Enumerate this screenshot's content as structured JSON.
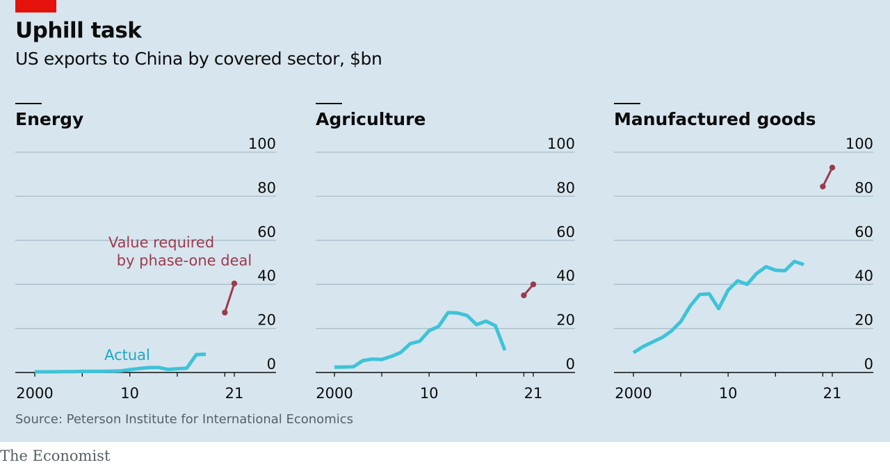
{
  "header": {
    "title": "Uphill task",
    "subtitle": "US exports to China by covered sector, $bn"
  },
  "footer": {
    "source": "Source: Peterson Institute for International Economics",
    "brand": "The Economist"
  },
  "colors": {
    "actual": "#3ec3d8",
    "required": "#9c3a4d",
    "brand_red": "#e3120b"
  },
  "chart_data": [
    {
      "type": "line",
      "title": "Energy",
      "xlim": [
        2000,
        2024
      ],
      "ylim": [
        0,
        100
      ],
      "yticks": [
        0,
        20,
        40,
        60,
        80,
        100
      ],
      "xticks": [
        2000,
        2010,
        2021
      ],
      "xtick_labels": [
        "2000",
        "10",
        "21"
      ],
      "annotations": {
        "required": [
          "Value required",
          "by phase-one deal"
        ],
        "actual": "Actual"
      },
      "series": [
        {
          "name": "Actual",
          "x": [
            2000,
            2001,
            2002,
            2003,
            2004,
            2005,
            2006,
            2007,
            2008,
            2009,
            2010,
            2011,
            2012,
            2013,
            2014,
            2015,
            2016,
            2017,
            2018
          ],
          "values": [
            0.3,
            0.3,
            0.3,
            0.4,
            0.4,
            0.5,
            0.5,
            0.5,
            0.6,
            0.7,
            1.3,
            1.8,
            2.2,
            2.3,
            1.4,
            1.7,
            2.0,
            8.1,
            8.3
          ]
        },
        {
          "name": "Value required by phase-one deal",
          "x": [
            2020,
            2021
          ],
          "values": [
            27.2,
            40.4
          ]
        }
      ]
    },
    {
      "type": "line",
      "title": "Agriculture",
      "xlim": [
        2000,
        2024
      ],
      "ylim": [
        0,
        100
      ],
      "yticks": [
        0,
        20,
        40,
        60,
        80,
        100
      ],
      "xticks": [
        2000,
        2010,
        2021
      ],
      "xtick_labels": [
        "2000",
        "10",
        "21"
      ],
      "series": [
        {
          "name": "Actual",
          "x": [
            2000,
            2001,
            2002,
            2003,
            2004,
            2005,
            2006,
            2007,
            2008,
            2009,
            2010,
            2011,
            2012,
            2013,
            2014,
            2015,
            2016,
            2017,
            2018
          ],
          "values": [
            2.4,
            2.5,
            2.6,
            5.4,
            6.1,
            5.9,
            7.3,
            9.1,
            13.1,
            14.2,
            19.0,
            20.9,
            27.2,
            27.0,
            25.9,
            21.7,
            23.3,
            21.2,
            10.1
          ]
        },
        {
          "name": "Value required by phase-one deal",
          "x": [
            2020,
            2021
          ],
          "values": [
            35.0,
            40.0
          ]
        }
      ]
    },
    {
      "type": "line",
      "title": "Manufactured goods",
      "xlim": [
        2000,
        2024
      ],
      "ylim": [
        0,
        100
      ],
      "yticks": [
        0,
        20,
        40,
        60,
        80,
        100
      ],
      "xticks": [
        2000,
        2010,
        2021
      ],
      "xtick_labels": [
        "2000",
        "10",
        "21"
      ],
      "series": [
        {
          "name": "Actual",
          "x": [
            2000,
            2001,
            2002,
            2003,
            2004,
            2005,
            2006,
            2007,
            2008,
            2009,
            2010,
            2011,
            2012,
            2013,
            2014,
            2015,
            2016,
            2017,
            2018
          ],
          "values": [
            9.0,
            11.7,
            13.8,
            15.8,
            18.8,
            23.1,
            30.2,
            35.4,
            35.7,
            29.0,
            37.4,
            41.6,
            40.0,
            44.9,
            48.0,
            46.4,
            46.2,
            50.4,
            49.0
          ]
        },
        {
          "name": "Value required by phase-one deal",
          "x": [
            2020,
            2021
          ],
          "values": [
            84.4,
            93.0
          ]
        }
      ]
    }
  ]
}
